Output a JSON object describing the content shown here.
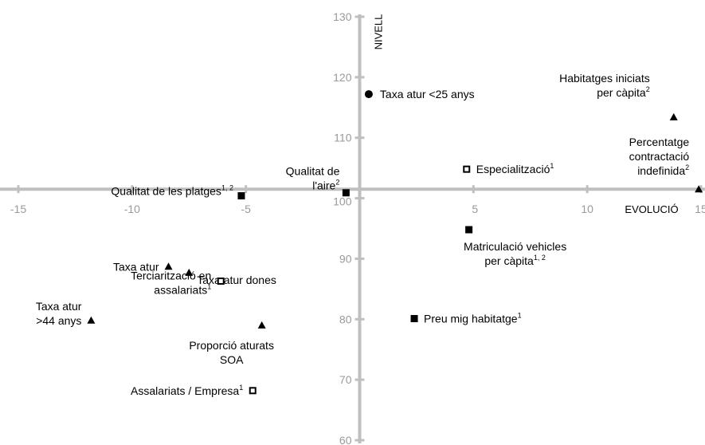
{
  "chart_data": {
    "type": "scatter",
    "title": "",
    "xlabel": "EVOLUCIÓ",
    "ylabel": "NIVELL",
    "xlim": [
      -15,
      15
    ],
    "ylim": [
      60,
      130
    ],
    "x_ticks": [
      "-15",
      "-10",
      "-5",
      "5",
      "10",
      "15"
    ],
    "y_ticks": [
      "60",
      "70",
      "80",
      "90",
      "100",
      "110",
      "120",
      "130"
    ],
    "grid": false,
    "points": [
      {
        "label": "Taxa atur <25 anys",
        "sup": "",
        "x": 0.4,
        "y": 117.2,
        "marker": "circle"
      },
      {
        "label": "Habitatges iniciats per càpita",
        "sup": "2",
        "x": 13.8,
        "y": 113.4,
        "marker": "triangle"
      },
      {
        "label": "Percentatge contractació indefinida",
        "sup": "2",
        "x": 14.9,
        "y": 101.5,
        "marker": "triangle"
      },
      {
        "label": "Especialització",
        "sup": "1",
        "x": 4.7,
        "y": 104.8,
        "marker": "square-open"
      },
      {
        "label": "Qualitat de l'aire",
        "sup": "2",
        "x": -0.6,
        "y": 100.9,
        "marker": "square"
      },
      {
        "label": "Qualitat de les platges",
        "sup": "1, 2",
        "x": -5.2,
        "y": 100.4,
        "marker": "square"
      },
      {
        "label": "Matriculació vehicles per càpita",
        "sup": "1, 2",
        "x": 4.8,
        "y": 94.8,
        "marker": "square"
      },
      {
        "label": "Taxa atur",
        "sup": "",
        "x": -8.4,
        "y": 88.7,
        "marker": "triangle"
      },
      {
        "label": "Taxa atur dones",
        "sup": "",
        "x": -7.5,
        "y": 87.7,
        "marker": "triangle"
      },
      {
        "label": "Terciarització en assalariats",
        "sup": "1",
        "x": -6.1,
        "y": 86.3,
        "marker": "square-open"
      },
      {
        "label": "Taxa atur >44 anys",
        "sup": "",
        "x": -11.8,
        "y": 79.8,
        "marker": "triangle"
      },
      {
        "label": "Proporció aturats SOA",
        "sup": "",
        "x": -4.3,
        "y": 79.0,
        "marker": "triangle"
      },
      {
        "label": "Preu mig habitatge",
        "sup": "1",
        "x": 2.4,
        "y": 80.1,
        "marker": "square"
      },
      {
        "label": "Assalariats / Empresa",
        "sup": "1",
        "x": -4.7,
        "y": 68.2,
        "marker": "square-open"
      }
    ]
  }
}
